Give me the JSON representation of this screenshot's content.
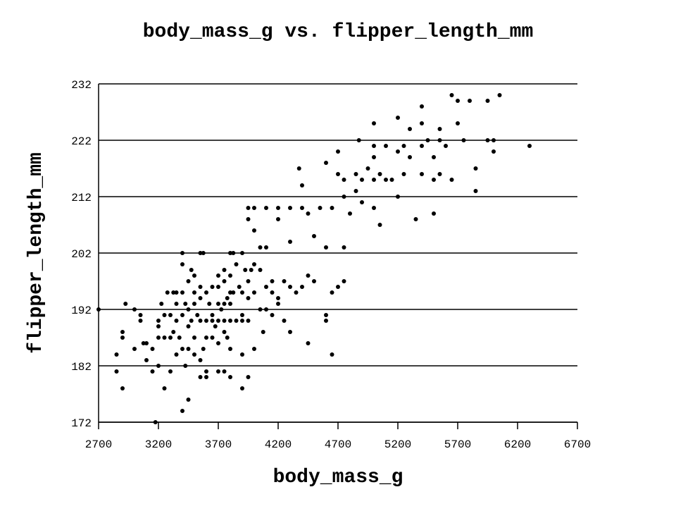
{
  "chart_data": {
    "type": "scatter",
    "title": "body_mass_g vs. flipper_length_mm",
    "x_label": "body_mass_g",
    "y_label": "flipper_length_mm",
    "color": "#000000",
    "grid": true,
    "xlim": [
      2700,
      6700
    ],
    "xticks": [
      2700,
      3200,
      3700,
      4200,
      4700,
      5200,
      5700,
      6200,
      6700
    ],
    "ylim": [
      172,
      232
    ],
    "yticks": [
      172,
      182,
      192,
      202,
      212,
      222,
      232
    ],
    "x": [
      2850,
      2850,
      2900,
      2900,
      2900,
      2925,
      3000,
      3000,
      3050,
      3050,
      3075,
      3100,
      3100,
      3150,
      3150,
      3175,
      3200,
      3200,
      3200,
      3200,
      3225,
      3250,
      3250,
      3250,
      3275,
      3300,
      3300,
      3300,
      3325,
      3325,
      3350,
      3350,
      3350,
      3350,
      3375,
      3400,
      3400,
      3400,
      3400,
      3400,
      3400,
      3425,
      3425,
      3450,
      3450,
      3450,
      3450,
      3450,
      3475,
      3475,
      3500,
      3500,
      3500,
      3500,
      3500,
      3525,
      3550,
      3550,
      3550,
      3550,
      3550,
      3550,
      3575,
      3600,
      3600,
      3600,
      3600,
      3600,
      3625,
      3650,
      3650,
      3650,
      3650,
      3675,
      3700,
      3700,
      3700,
      3700,
      3700,
      3700,
      3725,
      3750,
      3750,
      3750,
      3750,
      3750,
      3750,
      3775,
      3775,
      3800,
      3800,
      3800,
      3800,
      3800,
      3800,
      3800,
      3825,
      3850,
      3850,
      3875,
      3900,
      3900,
      3900,
      3900,
      3900,
      3900,
      3925,
      3950,
      3950,
      3950,
      3950,
      3950,
      3950,
      3975,
      4000,
      4000,
      4000,
      4000,
      4000,
      4050,
      4050,
      4050,
      4075,
      4100,
      4100,
      4100,
      4100,
      4150,
      4150,
      4150,
      4200,
      4200,
      4200,
      4200,
      4250,
      4250,
      4300,
      4300,
      4300,
      4300,
      4350,
      4375,
      4400,
      4400,
      4400,
      4450,
      4450,
      4450,
      4500,
      4500,
      4550,
      4600,
      4600,
      4600,
      4600,
      4650,
      4650,
      4650,
      4700,
      4700,
      4700,
      4750,
      4750,
      4750,
      4750,
      4800,
      4850,
      4850,
      4875,
      4900,
      4900,
      4950,
      5000,
      5000,
      5000,
      5000,
      5000,
      5050,
      5050,
      5100,
      5100,
      5150,
      5200,
      5200,
      5200,
      5250,
      5250,
      5300,
      5300,
      5350,
      5400,
      5400,
      5400,
      5400,
      5450,
      5500,
      5500,
      5500,
      5550,
      5550,
      5550,
      5600,
      5650,
      5650,
      5700,
      5700,
      5750,
      5800,
      5850,
      5850,
      5950,
      5950,
      6000,
      6000,
      6050,
      6300,
      2700,
      3575,
      3825
    ],
    "y": [
      181,
      184,
      178,
      187,
      188,
      193,
      192,
      185,
      190,
      191,
      186,
      183,
      186,
      185,
      181,
      172,
      182,
      187,
      189,
      190,
      193,
      187,
      178,
      191,
      195,
      181,
      187,
      191,
      188,
      195,
      184,
      190,
      193,
      195,
      187,
      174,
      185,
      191,
      195,
      200,
      202,
      182,
      193,
      176,
      185,
      189,
      192,
      197,
      190,
      199,
      184,
      187,
      193,
      195,
      198,
      191,
      180,
      183,
      190,
      194,
      196,
      202,
      185,
      180,
      181,
      187,
      190,
      195,
      193,
      187,
      190,
      191,
      196,
      189,
      181,
      186,
      190,
      193,
      196,
      198,
      192,
      181,
      188,
      190,
      193,
      197,
      199,
      187,
      194,
      180,
      185,
      190,
      193,
      195,
      198,
      202,
      195,
      190,
      200,
      196,
      178,
      184,
      190,
      191,
      195,
      202,
      199,
      180,
      190,
      194,
      197,
      208,
      210,
      199,
      185,
      195,
      200,
      206,
      210,
      192,
      199,
      203,
      188,
      192,
      196,
      203,
      210,
      191,
      195,
      197,
      193,
      194,
      208,
      210,
      190,
      197,
      188,
      196,
      204,
      210,
      195,
      217,
      196,
      210,
      214,
      186,
      198,
      209,
      197,
      205,
      210,
      190,
      191,
      203,
      218,
      184,
      195,
      210,
      196,
      220,
      216,
      197,
      203,
      212,
      215,
      209,
      213,
      216,
      222,
      211,
      215,
      217,
      210,
      215,
      219,
      221,
      225,
      207,
      216,
      215,
      221,
      215,
      212,
      220,
      226,
      216,
      221,
      219,
      224,
      208,
      216,
      221,
      225,
      228,
      222,
      209,
      215,
      219,
      216,
      222,
      224,
      221,
      215,
      230,
      225,
      229,
      222,
      229,
      213,
      217,
      222,
      229,
      220,
      222,
      230,
      221,
      192,
      202,
      202
    ]
  }
}
